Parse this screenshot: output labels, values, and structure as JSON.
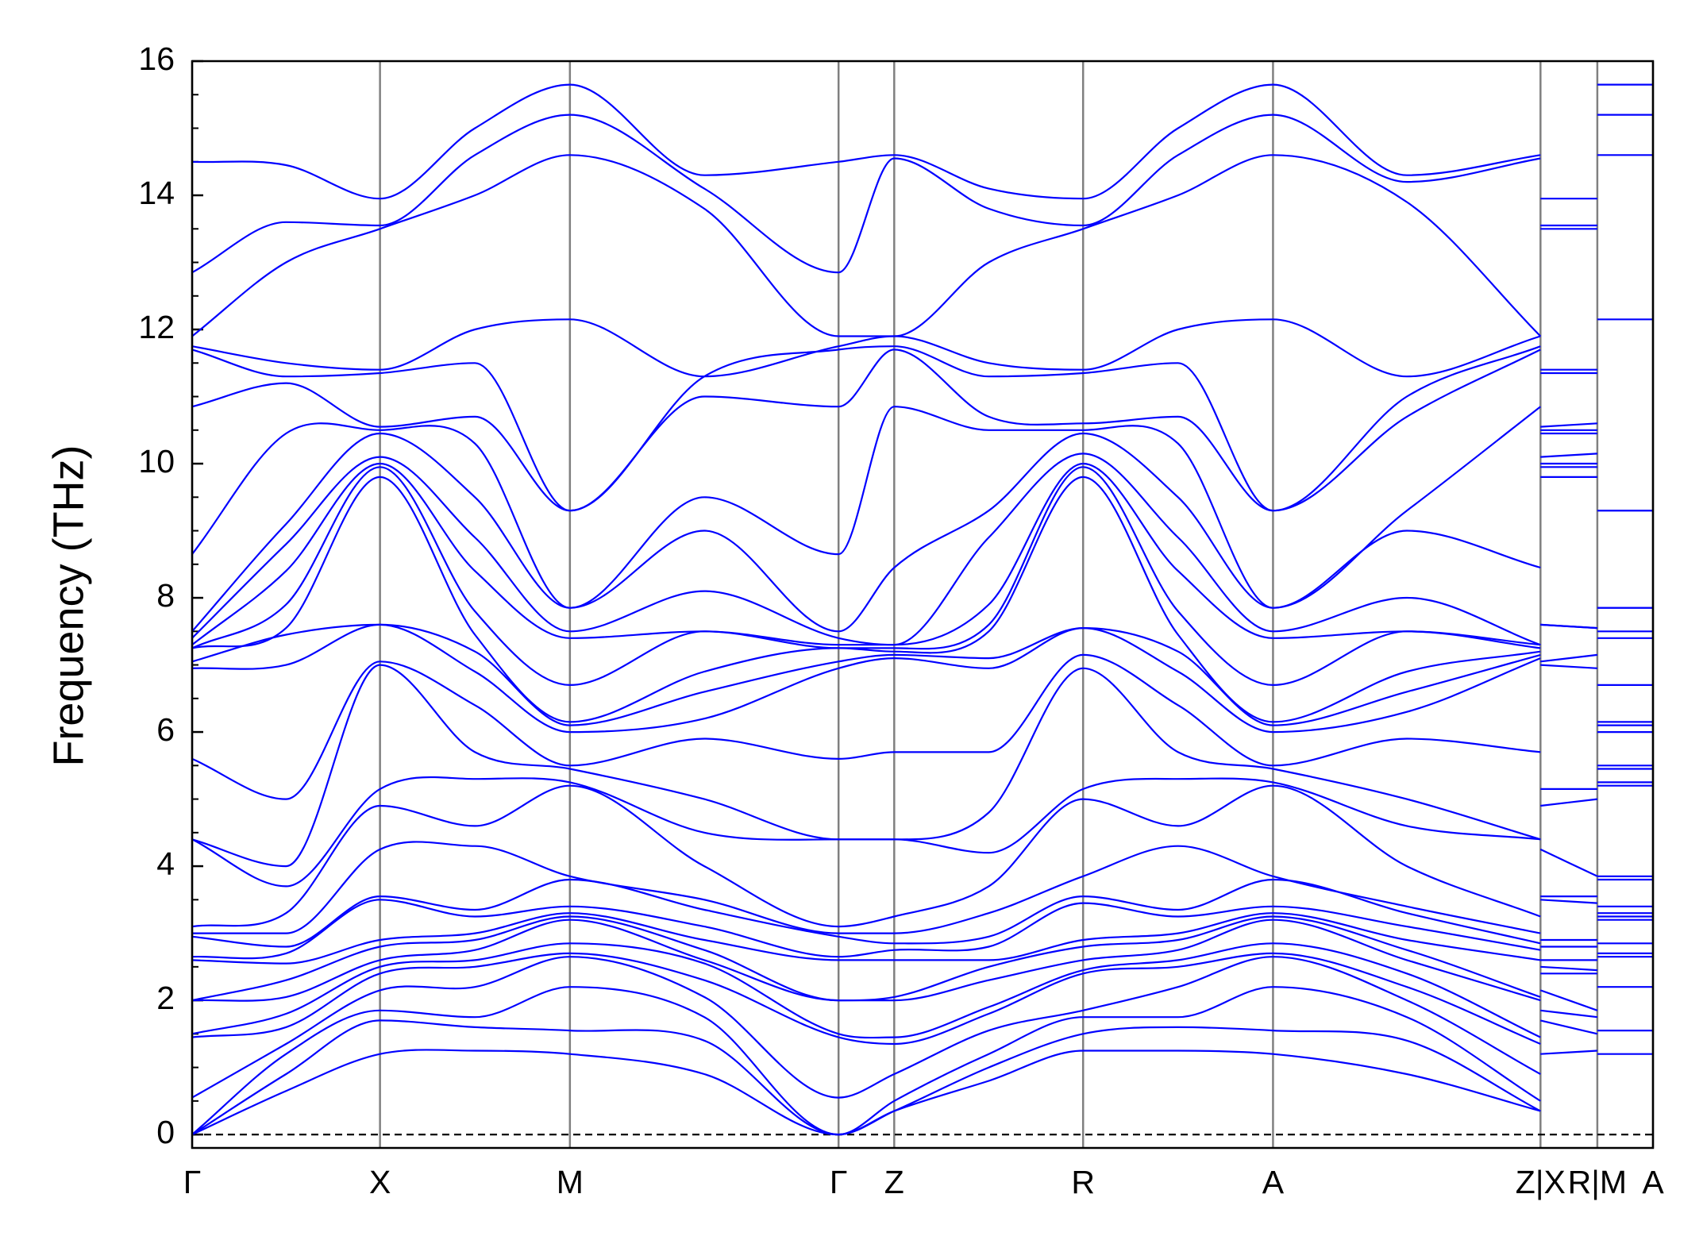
{
  "chart_data": {
    "type": "line",
    "ylabel": "Frequency (THz)",
    "color": "#0000ff",
    "ylim": [
      -0.2,
      16
    ],
    "yticks": [
      0,
      2,
      4,
      6,
      8,
      10,
      12,
      14,
      16
    ],
    "yminor_step": 0.5,
    "xlim": [
      0,
      1
    ],
    "xticks": [
      {
        "value": 0,
        "label": "Γ"
      },
      {
        "value": 0.1286,
        "label": "X"
      },
      {
        "value": 0.2586,
        "label": "M"
      },
      {
        "value": 0.4425,
        "label": "Γ"
      },
      {
        "value": 0.4806,
        "label": "Z"
      },
      {
        "value": 0.6099,
        "label": "R"
      },
      {
        "value": 0.7399,
        "label": "A"
      },
      {
        "value": 0.923,
        "label": "Z|X"
      },
      {
        "value": 0.9619,
        "label": "R|M"
      },
      {
        "value": 1,
        "label": "A"
      }
    ],
    "grid": true,
    "hline": 0,
    "x": [
      0,
      0.0643,
      0.1286,
      0.1936,
      0.2586,
      0.3506,
      0.4425,
      0.4806,
      0.5453,
      0.6099,
      0.6749,
      0.7399,
      0.8315,
      0.923,
      null,
      0.923,
      0.9619,
      null,
      0.9619,
      1
    ],
    "series": [
      {
        "values": [
          0,
          0.65,
          1.2,
          1.25,
          1.2,
          0.9,
          0,
          0.35,
          0.8,
          1.25,
          1.25,
          1.2,
          0.9,
          0.35,
          null,
          1.2,
          1.25,
          null,
          1.2,
          1.2
        ]
      },
      {
        "values": [
          0,
          0.9,
          1.7,
          1.6,
          1.55,
          1.4,
          0,
          0.35,
          1.0,
          1.5,
          1.6,
          1.55,
          1.4,
          0.35,
          null,
          1.7,
          1.5,
          null,
          1.55,
          1.55
        ]
      },
      {
        "values": [
          0,
          1.2,
          1.85,
          1.75,
          2.2,
          1.75,
          0,
          0.5,
          1.2,
          1.75,
          1.75,
          2.2,
          1.75,
          0.5,
          null,
          1.85,
          1.75,
          null,
          2.2,
          2.2
        ]
      },
      {
        "values": [
          0.55,
          1.35,
          2.15,
          2.2,
          2.65,
          2.05,
          0.55,
          0.9,
          1.55,
          1.85,
          2.2,
          2.65,
          2.0,
          0.9,
          null,
          2.15,
          1.85,
          null,
          2.65,
          2.65
        ]
      },
      {
        "values": [
          1.45,
          1.6,
          2.4,
          2.5,
          2.7,
          2.3,
          1.45,
          1.35,
          1.8,
          2.4,
          2.5,
          2.7,
          2.2,
          1.35,
          null,
          2.4,
          2.4,
          null,
          2.7,
          2.7
        ]
      },
      {
        "values": [
          1.5,
          1.8,
          2.5,
          2.6,
          2.85,
          2.55,
          1.5,
          1.45,
          1.9,
          2.45,
          2.6,
          2.85,
          2.4,
          1.45,
          null,
          2.5,
          2.45,
          null,
          2.85,
          2.85
        ]
      },
      {
        "values": [
          2.0,
          2.05,
          2.6,
          2.75,
          3.2,
          2.6,
          2.0,
          2.0,
          2.3,
          2.6,
          2.75,
          3.2,
          2.6,
          2.0,
          null,
          2.6,
          2.6,
          null,
          3.2,
          3.2
        ]
      },
      {
        "values": [
          2.0,
          2.3,
          2.8,
          2.9,
          3.25,
          2.75,
          2.0,
          2.05,
          2.5,
          2.8,
          2.9,
          3.25,
          2.75,
          2.05,
          null,
          2.8,
          2.8,
          null,
          3.25,
          3.25
        ]
      },
      {
        "values": [
          2.6,
          2.55,
          2.9,
          3.0,
          3.3,
          2.9,
          2.6,
          2.6,
          2.6,
          2.9,
          3.0,
          3.3,
          2.9,
          2.6,
          null,
          2.9,
          2.9,
          null,
          3.3,
          3.3
        ]
      },
      {
        "values": [
          2.65,
          2.7,
          3.5,
          3.25,
          3.4,
          3.1,
          2.65,
          2.75,
          2.8,
          3.45,
          3.25,
          3.4,
          3.1,
          2.75,
          null,
          3.5,
          3.45,
          null,
          3.4,
          3.4
        ]
      },
      {
        "values": [
          2.95,
          2.8,
          3.55,
          3.35,
          3.8,
          3.35,
          2.95,
          2.85,
          2.95,
          3.55,
          3.35,
          3.8,
          3.3,
          2.85,
          null,
          3.55,
          3.55,
          null,
          3.8,
          3.8
        ]
      },
      {
        "values": [
          3.0,
          3.0,
          4.25,
          4.3,
          3.85,
          3.5,
          3.0,
          3.0,
          3.3,
          3.85,
          4.3,
          3.85,
          3.4,
          3.0,
          null,
          4.25,
          3.85,
          null,
          3.85,
          3.85
        ]
      },
      {
        "values": [
          3.1,
          3.3,
          4.9,
          4.6,
          5.2,
          4.0,
          3.1,
          3.25,
          3.7,
          5.0,
          4.6,
          5.2,
          4.0,
          3.25,
          null,
          4.9,
          5.0,
          null,
          5.2,
          5.2
        ]
      },
      {
        "values": [
          4.4,
          3.7,
          5.15,
          5.3,
          5.25,
          4.5,
          4.4,
          4.4,
          4.2,
          5.15,
          5.3,
          5.25,
          4.6,
          4.4,
          null,
          5.15,
          5.15,
          null,
          5.25,
          5.25
        ]
      },
      {
        "values": [
          4.4,
          4.0,
          7.0,
          5.7,
          5.45,
          5.0,
          4.4,
          4.4,
          4.8,
          6.95,
          5.7,
          5.45,
          5.0,
          4.4,
          null,
          7.0,
          6.95,
          null,
          5.45,
          5.45
        ]
      },
      {
        "values": [
          5.6,
          5.0,
          7.05,
          6.4,
          5.5,
          5.9,
          5.6,
          5.7,
          5.7,
          7.15,
          6.4,
          5.5,
          5.9,
          5.7,
          null,
          7.05,
          7.15,
          null,
          5.5,
          5.5
        ]
      },
      {
        "values": [
          6.95,
          7.0,
          7.6,
          6.9,
          6.0,
          6.2,
          6.95,
          7.1,
          6.95,
          7.55,
          6.9,
          6.0,
          6.3,
          7.1,
          null,
          7.6,
          7.55,
          null,
          6.0,
          6.0
        ]
      },
      {
        "values": [
          7.05,
          7.45,
          7.6,
          7.2,
          6.1,
          6.6,
          7.05,
          7.15,
          7.1,
          7.55,
          7.2,
          6.1,
          6.6,
          7.15,
          null,
          7.6,
          7.55,
          null,
          6.1,
          6.1
        ]
      },
      {
        "values": [
          7.25,
          7.55,
          9.8,
          7.45,
          6.15,
          6.9,
          7.25,
          7.2,
          7.5,
          9.8,
          7.45,
          6.15,
          6.9,
          7.2,
          null,
          9.8,
          9.8,
          null,
          6.15,
          6.15
        ]
      },
      {
        "values": [
          7.25,
          7.9,
          9.95,
          7.8,
          6.7,
          7.5,
          7.25,
          7.25,
          7.6,
          9.95,
          7.8,
          6.7,
          7.5,
          7.25,
          null,
          9.95,
          9.95,
          null,
          6.7,
          6.7
        ]
      },
      {
        "values": [
          7.3,
          8.4,
          10.0,
          8.4,
          7.4,
          7.5,
          7.3,
          7.3,
          7.9,
          10.0,
          8.4,
          7.4,
          7.5,
          7.3,
          null,
          10.0,
          10.0,
          null,
          7.4,
          7.4
        ]
      },
      {
        "values": [
          7.4,
          8.8,
          10.1,
          8.9,
          7.5,
          8.1,
          7.4,
          7.3,
          8.9,
          10.15,
          8.9,
          7.5,
          8.0,
          7.3,
          null,
          10.1,
          10.15,
          null,
          7.5,
          7.5
        ]
      },
      {
        "values": [
          7.5,
          9.1,
          10.45,
          9.5,
          7.85,
          9.0,
          7.5,
          8.45,
          9.3,
          10.45,
          9.5,
          7.85,
          9.0,
          8.45,
          null,
          10.45,
          10.45,
          null,
          7.85,
          7.85
        ]
      },
      {
        "values": [
          8.65,
          10.45,
          10.5,
          10.3,
          7.85,
          9.5,
          8.65,
          10.85,
          10.5,
          10.5,
          10.3,
          7.85,
          9.3,
          10.85,
          null,
          10.5,
          10.5,
          null,
          7.85,
          7.85
        ]
      },
      {
        "values": [
          10.85,
          11.2,
          10.55,
          10.7,
          9.3,
          11.0,
          10.85,
          11.7,
          10.7,
          10.6,
          10.7,
          9.3,
          10.7,
          11.7,
          null,
          10.55,
          10.6,
          null,
          9.3,
          9.3
        ]
      },
      {
        "values": [
          11.7,
          11.3,
          11.35,
          11.5,
          9.3,
          11.3,
          11.7,
          11.75,
          11.3,
          11.35,
          11.5,
          9.3,
          11.0,
          11.75,
          null,
          11.35,
          11.35,
          null,
          9.3,
          9.3
        ]
      },
      {
        "values": [
          11.75,
          11.5,
          11.4,
          12.0,
          12.15,
          11.3,
          11.75,
          11.9,
          11.5,
          11.4,
          12.0,
          12.15,
          11.3,
          11.9,
          null,
          11.4,
          11.4,
          null,
          12.15,
          12.15
        ]
      },
      {
        "values": [
          11.9,
          13.0,
          13.5,
          14.0,
          14.6,
          13.8,
          11.9,
          11.9,
          13.0,
          13.5,
          14.0,
          14.6,
          13.9,
          11.9,
          null,
          13.5,
          13.5,
          null,
          14.6,
          14.6
        ]
      },
      {
        "values": [
          12.85,
          13.6,
          13.55,
          14.6,
          15.2,
          14.1,
          12.85,
          14.55,
          13.8,
          13.55,
          14.6,
          15.2,
          14.2,
          14.55,
          null,
          13.55,
          13.55,
          null,
          15.2,
          15.2
        ]
      },
      {
        "values": [
          14.5,
          14.45,
          13.95,
          15.0,
          15.65,
          14.3,
          14.5,
          14.6,
          14.1,
          13.95,
          15.0,
          15.65,
          14.3,
          14.6,
          null,
          13.95,
          13.95,
          null,
          15.65,
          15.65
        ]
      }
    ]
  }
}
